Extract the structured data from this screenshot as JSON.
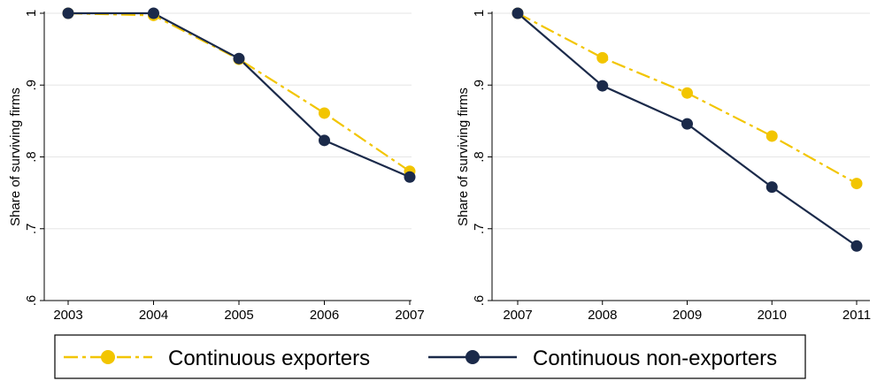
{
  "chart_data": [
    {
      "type": "line",
      "x": [
        2003,
        2004,
        2005,
        2006,
        2007
      ],
      "xticks": [
        "2003",
        "2004",
        "2005",
        "2006",
        "2007"
      ],
      "ylabel": "Share of surviving firms",
      "ylim": [
        0.6,
        1.0
      ],
      "yticks": [
        "1",
        ".9",
        ".8",
        ".7",
        ".6"
      ],
      "ytick_values": [
        1.0,
        0.9,
        0.8,
        0.7,
        0.6
      ],
      "grid": true,
      "series": [
        {
          "name": "Continuous exporters",
          "values": [
            1.0,
            0.997,
            0.936,
            0.861,
            0.78
          ]
        },
        {
          "name": "Continuous non-exporters",
          "values": [
            1.0,
            1.0,
            0.937,
            0.823,
            0.772
          ]
        }
      ]
    },
    {
      "type": "line",
      "x": [
        2007,
        2008,
        2009,
        2010,
        2011
      ],
      "xticks": [
        "2007",
        "2008",
        "2009",
        "2010",
        "2011"
      ],
      "ylabel": "Share of surviving firms",
      "ylim": [
        0.6,
        1.0
      ],
      "yticks": [
        "1",
        ".9",
        ".8",
        ".7",
        ".6"
      ],
      "ytick_values": [
        1.0,
        0.9,
        0.8,
        0.7,
        0.6
      ],
      "grid": true,
      "series": [
        {
          "name": "Continuous exporters",
          "values": [
            1.0,
            0.938,
            0.889,
            0.829,
            0.763
          ]
        },
        {
          "name": "Continuous non-exporters",
          "values": [
            1.0,
            0.899,
            0.846,
            0.758,
            0.676
          ]
        }
      ]
    }
  ],
  "legend": {
    "placement": "bottom",
    "items": [
      {
        "label": "Continuous exporters",
        "color": "#f2c500",
        "style": "dash-dot"
      },
      {
        "label": "Continuous non-exporters",
        "color": "#1b2a4a",
        "style": "solid"
      }
    ]
  },
  "colors": {
    "exporters": "#f2c500",
    "non_exporters": "#1b2a4a",
    "grid": "#e6e6e6",
    "axis": "#000000"
  }
}
